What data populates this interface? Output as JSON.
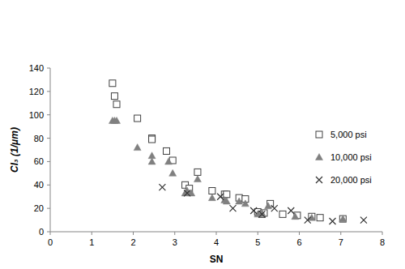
{
  "chart_data": {
    "type": "scatter",
    "x_label": "SN",
    "y_label": "CI₃ (1/μm)",
    "xlim": [
      0,
      8
    ],
    "xticks": [
      0,
      1,
      2,
      3,
      4,
      5,
      6,
      7,
      8
    ],
    "ylim": [
      0,
      140
    ],
    "yticks": [
      0,
      20,
      40,
      60,
      80,
      100,
      120,
      140
    ],
    "grid": false,
    "legend": "right",
    "series": [
      {
        "name": "5,000 psi",
        "marker": "square",
        "color": "#404040",
        "x": [
          1.5,
          1.55,
          1.6,
          2.1,
          2.45,
          2.45,
          2.8,
          2.95,
          3.25,
          3.35,
          3.55,
          3.9,
          4.2,
          4.25,
          4.55,
          4.7,
          5.0,
          5.1,
          5.15,
          5.3,
          5.6,
          5.95,
          6.3,
          6.5,
          7.05
        ],
        "values": [
          127,
          116,
          109,
          97,
          80,
          79,
          69,
          61,
          40,
          37,
          51,
          35,
          32,
          32,
          29,
          28,
          17,
          15,
          16,
          24,
          15,
          14,
          13,
          12,
          11
        ]
      },
      {
        "name": "10,000 psi",
        "marker": "triangle",
        "color": "#808080",
        "x": [
          1.5,
          1.55,
          1.6,
          2.1,
          2.45,
          2.45,
          2.85,
          2.95,
          3.25,
          3.3,
          3.4,
          3.55,
          3.9,
          4.2,
          4.25,
          4.55,
          4.7,
          5.0,
          5.1,
          5.25,
          5.9,
          6.3,
          7.05
        ],
        "values": [
          95,
          95,
          95,
          72,
          60,
          65,
          60,
          50,
          33,
          35,
          33,
          45,
          29,
          27,
          26,
          26,
          24,
          15,
          16,
          22,
          13,
          12,
          11
        ]
      },
      {
        "name": "20,000 psi",
        "marker": "x",
        "color": "#333333",
        "x": [
          2.7,
          3.3,
          4.1,
          4.4,
          4.9,
          5.1,
          5.4,
          5.8,
          6.2,
          6.8,
          7.55
        ],
        "values": [
          38,
          33,
          30,
          20,
          18,
          15,
          20,
          18,
          10,
          9,
          10
        ]
      }
    ]
  }
}
